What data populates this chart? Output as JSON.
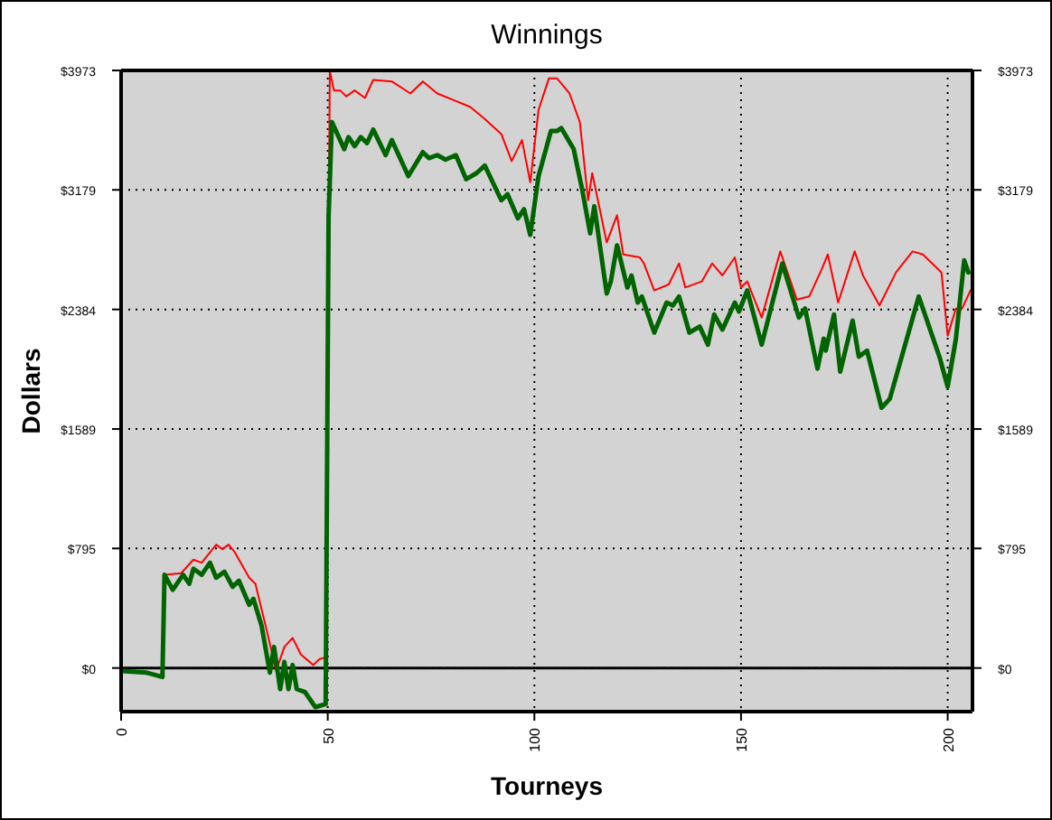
{
  "chart_data": {
    "type": "line",
    "title": "Winnings",
    "xlabel": "Tourneys",
    "ylabel": "Dollars",
    "xlim": [
      0,
      206
    ],
    "xticks": [
      0,
      50,
      100,
      150,
      200
    ],
    "ylim": [
      -290,
      3973
    ],
    "yticks": [
      {
        "value": 0,
        "label": "$0"
      },
      {
        "value": 795,
        "label": "$795"
      },
      {
        "value": 1589,
        "label": "$1589"
      },
      {
        "value": 2384,
        "label": "$2384"
      },
      {
        "value": 3179,
        "label": "$3179"
      },
      {
        "value": 3973,
        "label": "$3973"
      }
    ],
    "y2lim": [
      -290,
      3973
    ],
    "y2ticks": [
      {
        "value": 0,
        "label": "$0"
      },
      {
        "value": 795,
        "label": "$795"
      },
      {
        "value": 1589,
        "label": "$1589"
      },
      {
        "value": 2384,
        "label": "$2384"
      },
      {
        "value": 3179,
        "label": "$3179"
      },
      {
        "value": 3973,
        "label": "$3973"
      }
    ],
    "grid": true,
    "ref_lines": [
      {
        "axis": "y",
        "value": 0,
        "color": "#000000"
      }
    ],
    "series": [
      {
        "color": "#ff0000",
        "x": [
          10.5,
          14.5,
          17.5,
          19.5,
          23,
          24.5,
          26,
          27.5,
          31,
          32.5,
          35.5,
          37.5,
          39.5,
          41.5,
          43.5,
          46.5,
          48,
          49.5,
          50.5,
          51.5,
          53,
          54.5,
          56.5,
          59,
          61,
          65.5,
          70,
          73,
          76.5,
          81,
          84.5,
          88,
          92,
          94.5,
          97,
          99,
          101,
          103.5,
          105.5,
          108.5,
          111,
          113,
          114,
          117.5,
          120,
          121.5,
          125.5,
          126.5,
          129,
          132.5,
          135,
          136.5,
          140.5,
          143,
          145.5,
          148.5,
          150,
          151.5,
          155,
          159.5,
          163.5,
          166.5,
          169.5,
          171,
          173.5,
          177.5,
          179.5,
          183.5,
          187.5,
          191.5,
          194,
          198.5,
          200,
          202,
          203.5,
          205.5
        ],
        "values": [
          620,
          630,
          720,
          700,
          820,
          790,
          820,
          770,
          600,
          560,
          220,
          -20,
          140,
          200,
          90,
          20,
          60,
          70,
          3970,
          3840,
          3840,
          3800,
          3840,
          3790,
          3910,
          3900,
          3820,
          3900,
          3820,
          3770,
          3730,
          3650,
          3550,
          3370,
          3510,
          3230,
          3710,
          3920,
          3920,
          3820,
          3630,
          3110,
          3290,
          2830,
          3010,
          2750,
          2730,
          2690,
          2510,
          2550,
          2690,
          2530,
          2570,
          2690,
          2610,
          2730,
          2530,
          2570,
          2330,
          2770,
          2450,
          2470,
          2650,
          2750,
          2430,
          2770,
          2610,
          2410,
          2630,
          2770,
          2750,
          2630,
          2210,
          2390,
          2390,
          2510
        ]
      },
      {
        "color": "#006400",
        "x": [
          0,
          6,
          10,
          10.5,
          12.5,
          15,
          16.5,
          17.5,
          19.5,
          21.5,
          23,
          25,
          27,
          28.5,
          31,
          32,
          34,
          36,
          37,
          38.5,
          39.5,
          40.5,
          41.5,
          42.5,
          44.5,
          47,
          49.5,
          50.2,
          51,
          54,
          55,
          56.5,
          58,
          59.5,
          61,
          64,
          65.5,
          69.5,
          73,
          74.5,
          76.5,
          78.5,
          81,
          83.5,
          86,
          88,
          92,
          93.5,
          96,
          97.5,
          99,
          101,
          104,
          105.5,
          106.5,
          109.5,
          111.5,
          113.5,
          114.5,
          117.5,
          118.5,
          120,
          122.5,
          123.5,
          125,
          126,
          129,
          132,
          133.5,
          135,
          137.5,
          140,
          142,
          143.5,
          145.5,
          148.5,
          149.5,
          151.5,
          155,
          160,
          164,
          165.5,
          168.5,
          170,
          170.5,
          172.5,
          174,
          177,
          178.5,
          180.5,
          184,
          186,
          193,
          194.5,
          198,
          200,
          202,
          204,
          205
        ],
        "values": [
          -20,
          -30,
          -60,
          620,
          520,
          620,
          560,
          660,
          620,
          700,
          600,
          640,
          540,
          580,
          420,
          460,
          280,
          -30,
          140,
          -140,
          40,
          -140,
          20,
          -140,
          -160,
          -260,
          -240,
          3000,
          3630,
          3450,
          3530,
          3470,
          3530,
          3490,
          3580,
          3410,
          3510,
          3270,
          3430,
          3390,
          3410,
          3380,
          3410,
          3250,
          3290,
          3340,
          3110,
          3150,
          2990,
          3050,
          2880,
          3270,
          3570,
          3570,
          3590,
          3450,
          3190,
          2890,
          3070,
          2490,
          2570,
          2810,
          2530,
          2610,
          2430,
          2470,
          2230,
          2430,
          2410,
          2470,
          2230,
          2270,
          2150,
          2350,
          2250,
          2430,
          2370,
          2510,
          2150,
          2690,
          2330,
          2390,
          1990,
          2190,
          2110,
          2350,
          1970,
          2310,
          2070,
          2110,
          1730,
          1790,
          2470,
          2350,
          2070,
          1870,
          2190,
          2710,
          2630
        ]
      }
    ]
  }
}
